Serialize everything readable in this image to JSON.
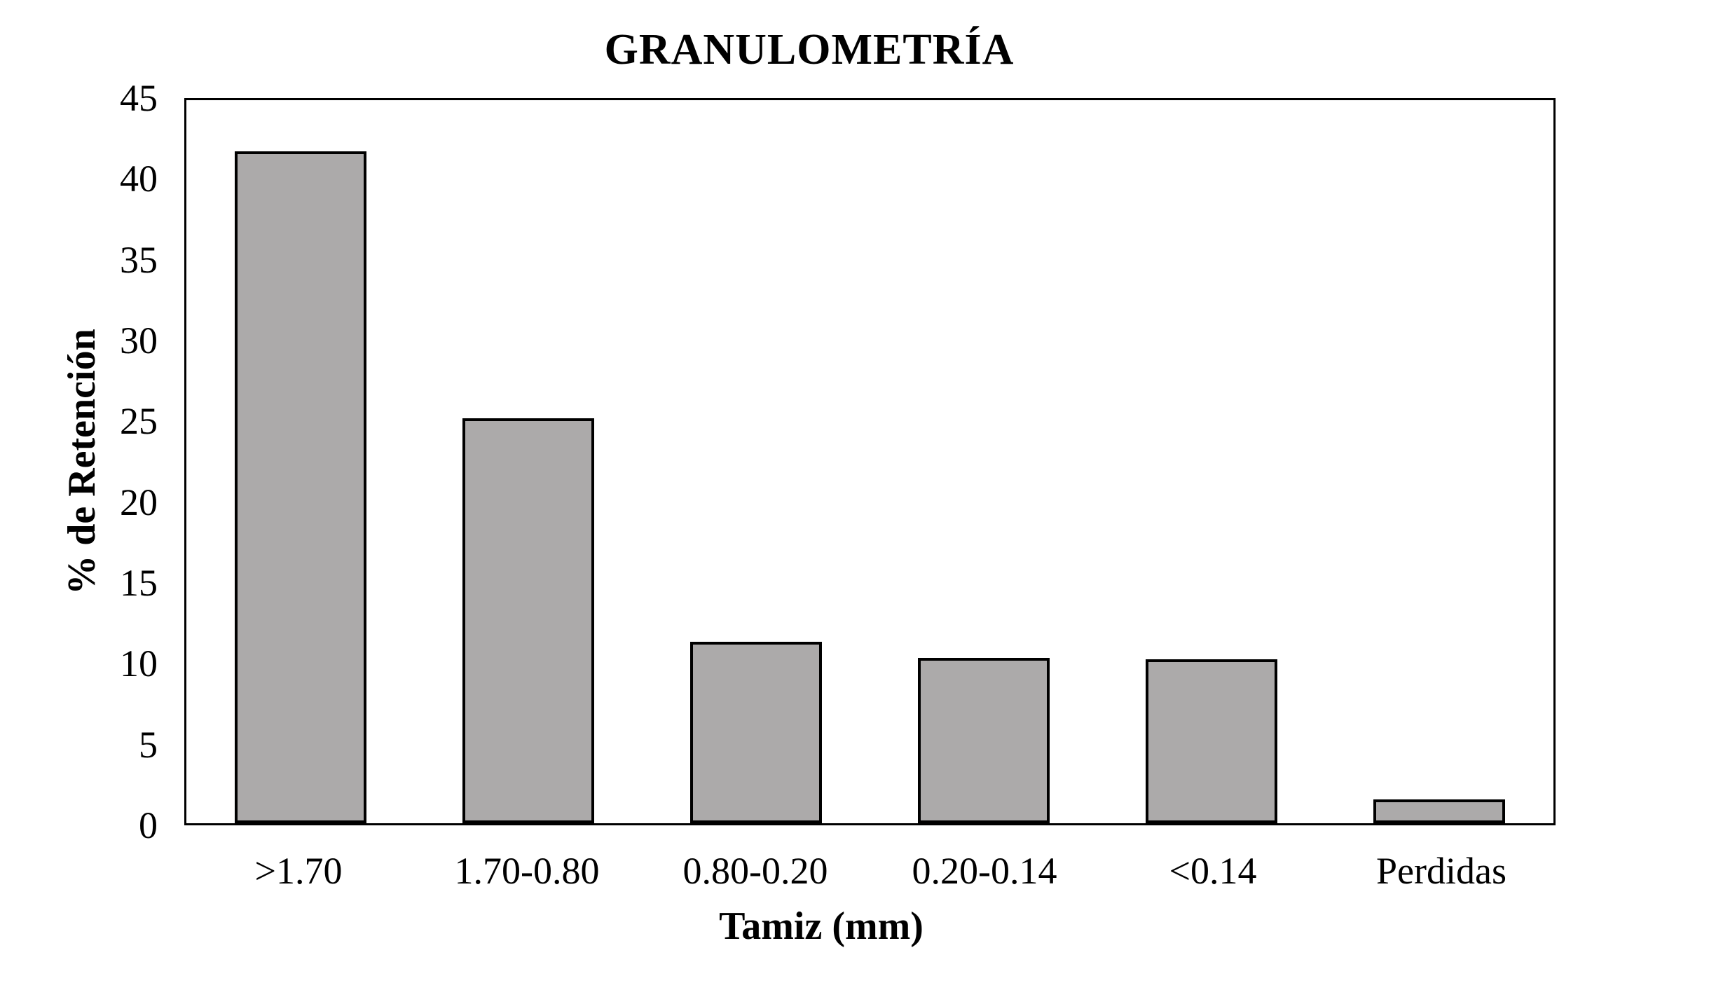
{
  "page": {
    "background_color": "#FFFFFF",
    "text_color": "#000000"
  },
  "chart_data": {
    "type": "bar",
    "title": "GRANULOMETRÍA",
    "categories": [
      ">1.70",
      "1.70-0.80",
      "0.80-0.20",
      "0.20-0.14",
      "<0.14",
      "Perdidas"
    ],
    "values": [
      41.8,
      25.2,
      11.3,
      10.3,
      10.2,
      1.5
    ],
    "xlabel": "Tamiz (mm)",
    "ylabel": "% de Retención",
    "ylim": [
      0,
      45
    ],
    "yticks": [
      0,
      5,
      10,
      15,
      20,
      25,
      30,
      35,
      40,
      45
    ],
    "grid": false,
    "legend_position": "none",
    "bar_fill_color": "#ACAAAA",
    "bar_border_color": "#000000",
    "axis_color": "#000000"
  }
}
